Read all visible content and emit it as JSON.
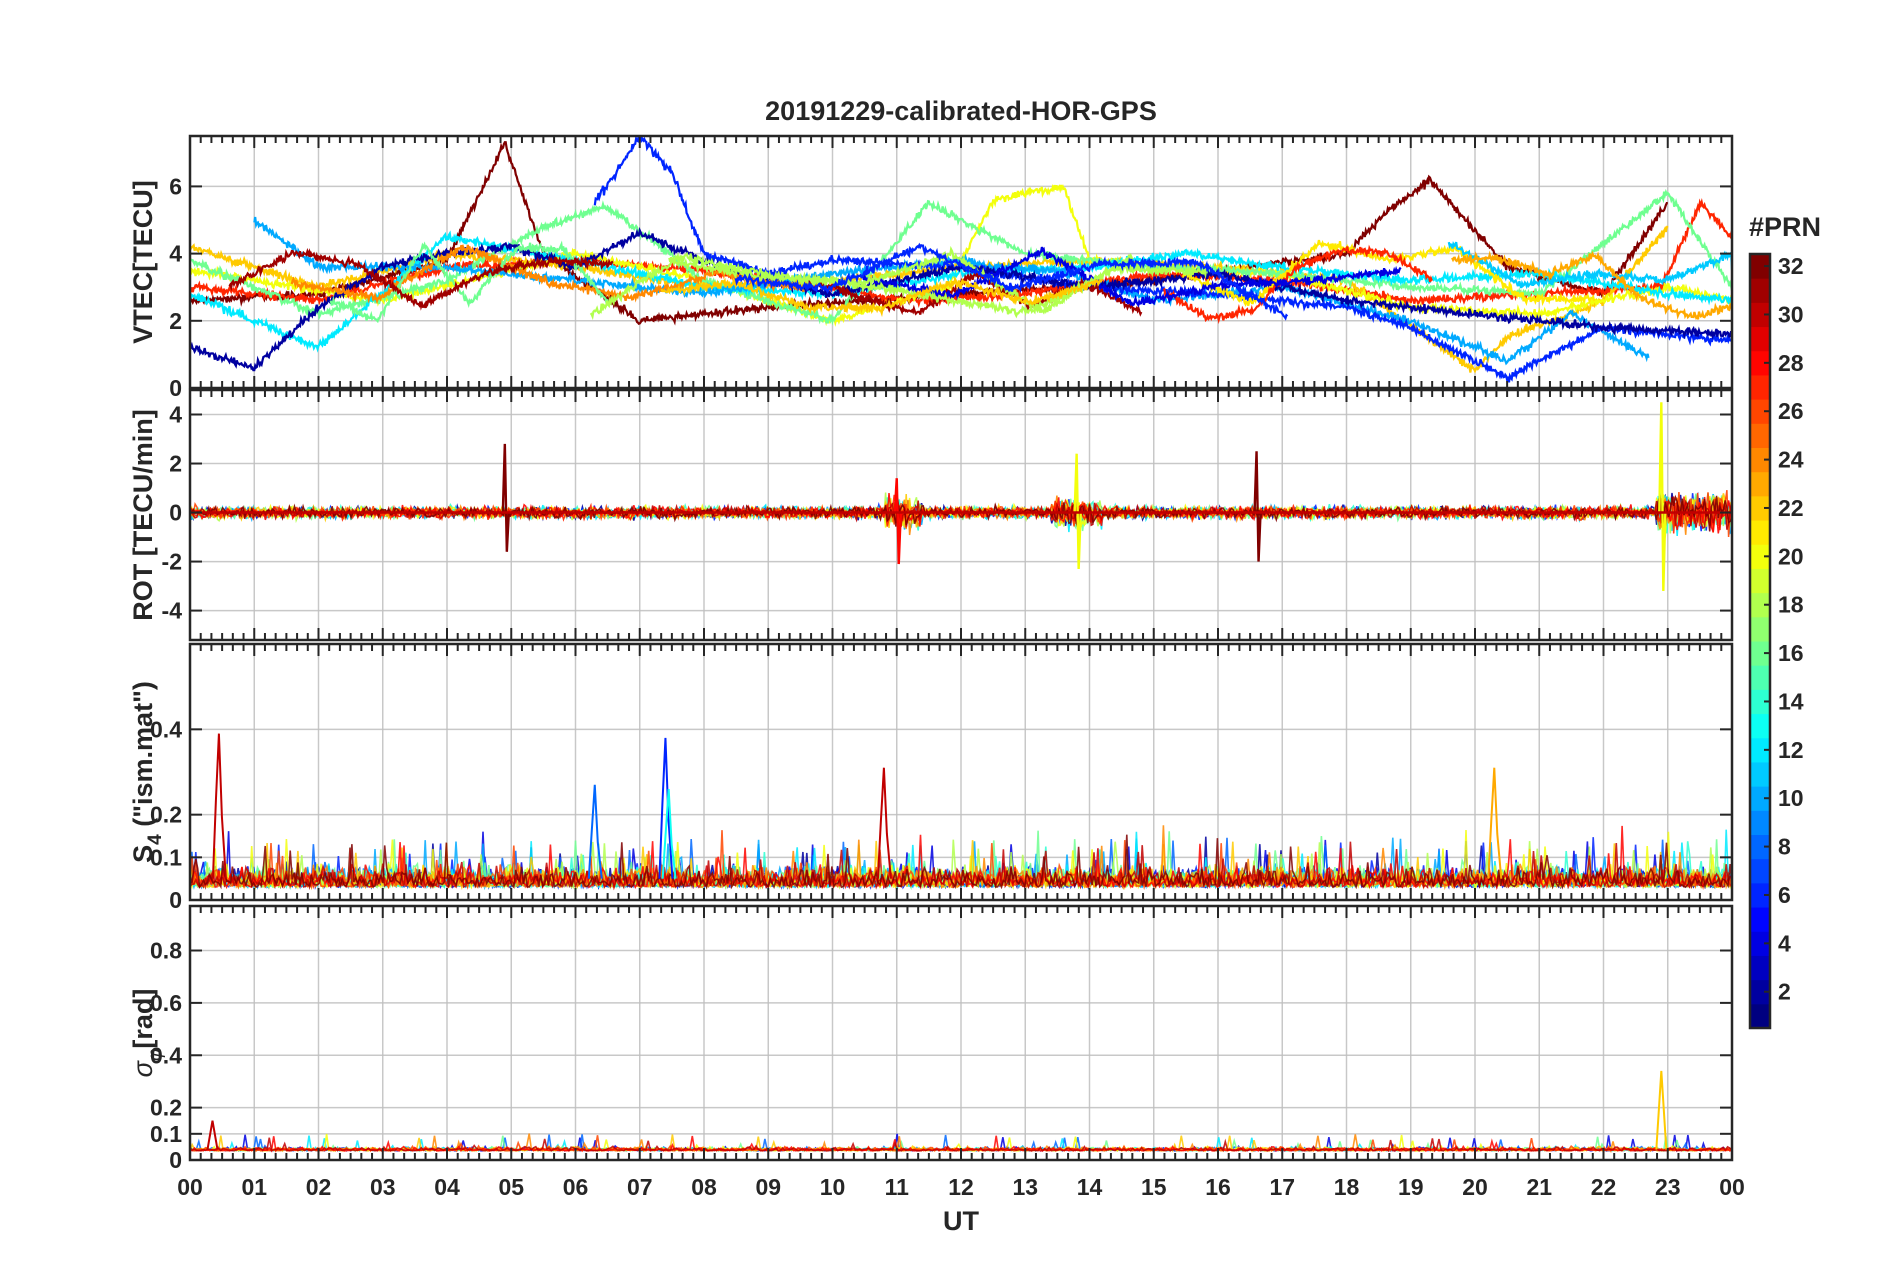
{
  "chart_data": {
    "type": "line",
    "title": "20191229-calibrated-HOR-GPS",
    "xlabel": "UT",
    "x_ticks": [
      "00",
      "01",
      "02",
      "03",
      "04",
      "05",
      "06",
      "07",
      "08",
      "09",
      "10",
      "11",
      "12",
      "13",
      "14",
      "15",
      "16",
      "17",
      "18",
      "19",
      "20",
      "21",
      "22",
      "23",
      "00"
    ],
    "x_range_hours": [
      0,
      24
    ],
    "grid": true,
    "colorbar": {
      "label": "#PRN",
      "range": [
        1,
        32
      ],
      "ticks": [
        2,
        4,
        6,
        8,
        10,
        12,
        14,
        16,
        18,
        20,
        22,
        24,
        26,
        28,
        30,
        32
      ],
      "colormap": "jet",
      "placement": "right"
    },
    "panels": [
      {
        "id": "vtec",
        "ylabel": "VTEC[TECU]",
        "ylim": [
          0,
          7.5
        ],
        "yticks": [
          0,
          2,
          4,
          6
        ],
        "series_summary": [
          {
            "prn": 32,
            "x_hours": [
              0,
              2,
              4,
              4.9,
              5.5,
              7,
              9,
              12,
              15,
              18,
              18.6,
              19.3,
              20.5,
              22,
              23
            ],
            "y": [
              2.6,
              2.8,
              3.8,
              7.3,
              4.0,
              2.0,
              2.4,
              2.8,
              3.2,
              4.0,
              5.2,
              6.2,
              3.6,
              2.8,
              5.5
            ]
          },
          {
            "prn": 27,
            "x_hours": [
              0,
              2,
              4,
              6,
              8,
              10,
              11,
              13,
              15,
              17,
              19,
              21,
              22.9,
              23.5,
              24
            ],
            "y": [
              3.0,
              2.6,
              3.6,
              3.8,
              3.5,
              3.0,
              2.6,
              2.8,
              3.4,
              3.2,
              2.6,
              2.8,
              3.0,
              5.5,
              4.5
            ]
          },
          {
            "prn": 22,
            "x_hours": [
              0,
              2,
              4,
              6,
              8,
              10,
              12,
              14,
              16,
              18,
              20,
              20.5,
              22,
              23
            ],
            "y": [
              4.2,
              3.0,
              4.0,
              3.6,
              3.0,
              3.2,
              3.6,
              3.8,
              3.6,
              3.2,
              0.5,
              1.5,
              2.6,
              4.8
            ]
          },
          {
            "prn": 20,
            "x_hours": [
              0,
              3,
              6,
              8,
              10,
              11.8,
              12.5,
              13.6,
              14,
              15,
              17,
              19,
              21,
              23,
              24
            ],
            "y": [
              3.5,
              2.6,
              4.0,
              3.2,
              2.0,
              3.0,
              5.6,
              6.0,
              3.8,
              3.6,
              3.4,
              2.4,
              2.2,
              3.0,
              2.6
            ]
          },
          {
            "prn": 16,
            "x_hours": [
              0,
              2,
              4,
              5.5,
              6.5,
              8,
              10,
              11.5,
              13,
              15,
              17,
              19,
              21,
              23,
              24
            ],
            "y": [
              3.8,
              2.2,
              3.2,
              4.8,
              5.4,
              3.2,
              2.0,
              5.5,
              4.0,
              3.6,
              3.4,
              3.0,
              2.8,
              5.8,
              3.0
            ]
          },
          {
            "prn": 12,
            "x_hours": [
              0,
              2,
              4,
              6,
              8,
              10,
              12,
              14,
              15.5,
              17,
              19,
              21,
              23,
              24
            ],
            "y": [
              2.8,
              1.2,
              4.5,
              3.8,
              3.0,
              2.8,
              3.4,
              3.6,
              4.0,
              3.6,
              3.2,
              3.4,
              2.8,
              2.6
            ]
          },
          {
            "prn": 10,
            "x_hours": [
              1,
              2,
              4,
              6,
              8,
              10,
              12,
              12.5,
              13.5,
              15,
              17,
              19,
              20.5,
              21.5,
              22.7
            ],
            "y": [
              5.0,
              3.6,
              3.6,
              3.2,
              2.8,
              3.4,
              3.8,
              3.6,
              3.5,
              2.6,
              3.0,
              2.0,
              0.8,
              2.2,
              0.9
            ]
          },
          {
            "prn": 6,
            "x_hours": [
              6.3,
              7,
              7.5,
              8,
              9,
              10,
              12,
              14,
              16,
              18,
              19,
              20.5,
              22,
              24
            ],
            "y": [
              5.5,
              7.5,
              6.4,
              4.0,
              3.4,
              3.8,
              3.6,
              3.0,
              2.8,
              2.4,
              1.8,
              0.3,
              1.8,
              1.4
            ]
          },
          {
            "prn": 2,
            "x_hours": [
              0,
              1,
              2,
              3,
              4,
              5,
              6,
              7,
              8.5,
              10,
              12,
              14,
              16,
              18,
              20,
              22,
              24
            ],
            "y": [
              1.2,
              0.6,
              2.4,
              3.6,
              4.0,
              4.2,
              3.6,
              4.6,
              3.4,
              2.8,
              3.6,
              3.0,
              3.4,
              2.6,
              2.2,
              1.8,
              1.6
            ]
          }
        ]
      },
      {
        "id": "rot",
        "ylabel": "ROT [TECU/min]",
        "ylim": [
          -5.2,
          5.0
        ],
        "yticks": [
          -4,
          -2,
          0,
          2,
          4
        ],
        "notable_spikes": [
          {
            "x_hours": 4.9,
            "y_range": [
              -1.6,
              2.8
            ]
          },
          {
            "x_hours": 11.0,
            "y_range": [
              -2.1,
              1.4
            ]
          },
          {
            "x_hours": 13.8,
            "y_range": [
              -2.3,
              2.4
            ]
          },
          {
            "x_hours": 16.6,
            "y_range": [
              -2.0,
              2.5
            ]
          },
          {
            "x_hours": 22.9,
            "y_range": [
              -3.2,
              4.5
            ]
          }
        ]
      },
      {
        "id": "s4",
        "ylabel": "S4 (\"ism.mat\")",
        "ylabel_main": "S",
        "ylabel_sub": "4",
        "ylabel_rest": " (\"ism.mat\")",
        "ylim": [
          0,
          0.6
        ],
        "yticks": [
          0,
          0.1,
          0.2,
          0.4
        ],
        "ytick_labels": [
          "0",
          "0.1",
          "0.2",
          "0.4"
        ],
        "notable_peaks": [
          {
            "x_hours": 0.45,
            "y": 0.39
          },
          {
            "x_hours": 7.4,
            "y": 0.38
          },
          {
            "x_hours": 10.8,
            "y": 0.31
          },
          {
            "x_hours": 20.3,
            "y": 0.31
          },
          {
            "x_hours": 6.3,
            "y": 0.27
          },
          {
            "x_hours": 7.45,
            "y": 0.26
          }
        ]
      },
      {
        "id": "sigphi",
        "ylabel": "σφ[rad]",
        "ylabel_main": "σ",
        "ylabel_sub": "φ",
        "ylabel_rest": "[rad]",
        "ylim": [
          0,
          0.97
        ],
        "yticks": [
          0,
          0.1,
          0.2,
          0.4,
          0.6,
          0.8
        ],
        "ytick_labels": [
          "0",
          "0.1",
          "0.2",
          "0.4",
          "0.6",
          "0.8"
        ],
        "notable_peaks": [
          {
            "x_hours": 0.35,
            "y": 0.15
          },
          {
            "x_hours": 22.9,
            "y": 0.34
          }
        ]
      }
    ]
  }
}
